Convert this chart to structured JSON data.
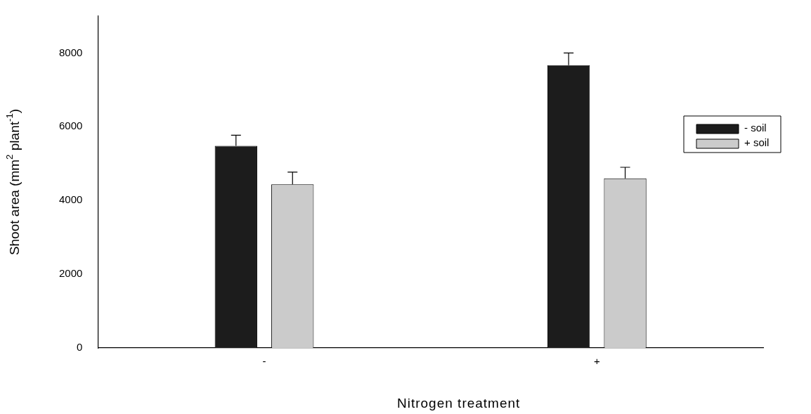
{
  "chart_data": {
    "type": "bar",
    "xlabel": "Nitrogen treatment",
    "ylabel": "Shoot area (mm$^{2}$ plant$^{-1}$)",
    "categories": [
      "-",
      "+"
    ],
    "series": [
      {
        "name": "- soil",
        "color": "#1c1c1c",
        "values": [
          5480,
          7670
        ],
        "errors": [
          [
            5480,
            5770
          ],
          [
            7670,
            8000
          ]
        ]
      },
      {
        "name": "+ soil",
        "color": "#cbcbcb",
        "values": [
          4440,
          4600
        ],
        "errors": [
          [
            4440,
            4770
          ],
          [
            4600,
            4900
          ]
        ]
      }
    ],
    "ylim": [
      0,
      9000
    ],
    "yticks": [
      0,
      2000,
      4000,
      6000,
      8000
    ],
    "grid": false,
    "legend": "right"
  }
}
